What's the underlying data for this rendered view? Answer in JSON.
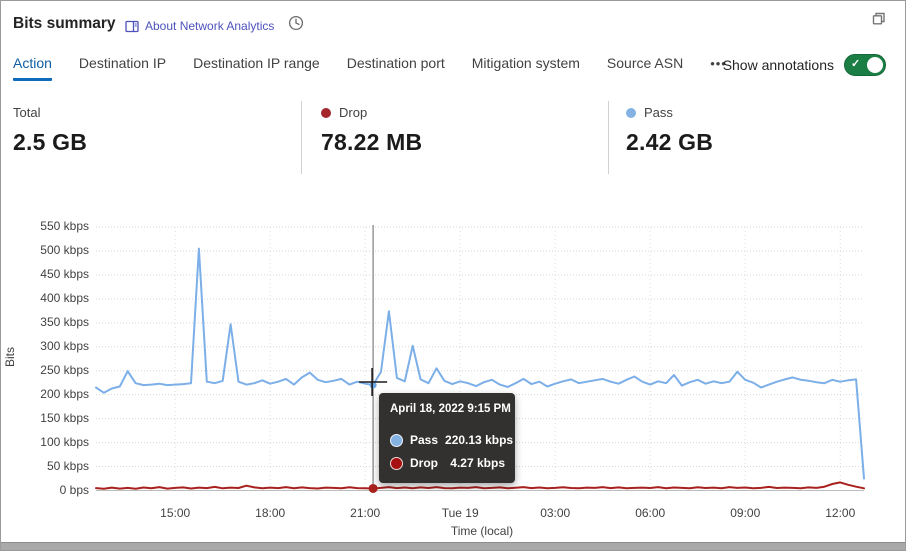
{
  "header": {
    "title": "Bits summary",
    "about_link": "About Network Analytics",
    "icons": [
      "book-icon",
      "clock-icon",
      "restore-window-icon"
    ]
  },
  "tabs": {
    "items": [
      {
        "label": "Action",
        "selected": true
      },
      {
        "label": "Destination IP",
        "selected": false
      },
      {
        "label": "Destination IP range",
        "selected": false
      },
      {
        "label": "Destination port",
        "selected": false
      },
      {
        "label": "Mitigation system",
        "selected": false
      },
      {
        "label": "Source ASN",
        "selected": false
      }
    ],
    "overflow_label": "•••"
  },
  "annotations_toggle": {
    "label": "Show annotations",
    "state": "on"
  },
  "stats": [
    {
      "label": "Total",
      "value": "2.5 GB",
      "dot_color": null
    },
    {
      "label": "Drop",
      "value": "78.22 MB",
      "dot_color": "#a4262c"
    },
    {
      "label": "Pass",
      "value": "2.42 GB",
      "dot_color": "#84b3e3"
    }
  ],
  "tooltip": {
    "title": "April 18, 2022 9:15 PM",
    "rows": [
      {
        "label": "Pass",
        "value": "220.13 kbps",
        "color": "#84b3e3"
      },
      {
        "label": "Drop",
        "value": "4.27 kbps",
        "color": "#a50f0f"
      }
    ]
  },
  "colors": {
    "accent_blue": "#115ea3",
    "tab_underline": "#0f6cbd",
    "link_indigo": "#4d52bc",
    "pass_line": "#7cafe8",
    "drop_line": "#a8211e",
    "toggle_green": "#1b7e45",
    "tooltip_bg": "#323130",
    "grid": "#d9d9d9"
  },
  "chart_data": {
    "type": "line",
    "xlabel": "Time (local)",
    "ylabel": "Bits",
    "ylim": [
      0,
      550
    ],
    "unit": "kbps",
    "grid": true,
    "x_start": "April 18, 2022 12:30 PM",
    "x_end": "April 19, 2022 12:45 PM",
    "interval_minutes": 15,
    "y_tick_labels": [
      "0 bps",
      "50 kbps",
      "100 kbps",
      "150 kbps",
      "200 kbps",
      "250 kbps",
      "300 kbps",
      "350 kbps",
      "400 kbps",
      "450 kbps",
      "500 kbps",
      "550 kbps"
    ],
    "x_tick_labels": [
      "15:00",
      "18:00",
      "21:00",
      "Tue 19",
      "03:00",
      "06:00",
      "09:00",
      "12:00"
    ],
    "x_tick_indices": [
      10,
      22,
      34,
      46,
      58,
      70,
      82,
      94
    ],
    "hover": {
      "index": 35,
      "time": "April 18, 2022 9:15 PM",
      "pass_kbps": 220.13,
      "drop_kbps": 4.27
    },
    "series": [
      {
        "name": "Pass",
        "color": "#7cafe8",
        "values": [
          215,
          204,
          213,
          217,
          249,
          224,
          220,
          221,
          223,
          220,
          221,
          222,
          224,
          505,
          227,
          224,
          229,
          347,
          227,
          221,
          224,
          230,
          223,
          227,
          233,
          221,
          236,
          246,
          231,
          226,
          229,
          233,
          221,
          227,
          223,
          220.13,
          248,
          374,
          235,
          228,
          302,
          232,
          224,
          255,
          229,
          222,
          228,
          224,
          218,
          226,
          231,
          221,
          216,
          224,
          233,
          222,
          227,
          217,
          223,
          228,
          232,
          224,
          227,
          230,
          233,
          227,
          223,
          231,
          238,
          227,
          221,
          228,
          224,
          241,
          219,
          226,
          231,
          223,
          228,
          224,
          227,
          248,
          231,
          225,
          215,
          221,
          227,
          232,
          236,
          231,
          229,
          226,
          224,
          231,
          227,
          230,
          232,
          25
        ]
      },
      {
        "name": "Drop",
        "color": "#a8211e",
        "values": [
          5,
          3.5,
          6,
          4,
          5.5,
          3.8,
          6.2,
          4.5,
          7,
          4,
          5.5,
          6.5,
          4.2,
          6,
          5,
          7.5,
          4.5,
          6,
          5.2,
          10,
          6.5,
          4.8,
          6,
          5,
          7,
          4.5,
          6.5,
          5,
          4.2,
          6,
          5.5,
          4.8,
          6.8,
          5,
          4.5,
          4.27,
          5.5,
          7,
          5,
          6.2,
          4.8,
          6.5,
          5.2,
          7.2,
          5,
          4.5,
          6,
          5.5,
          7,
          4.8,
          5.5,
          6.5,
          4.5,
          5.8,
          7,
          5,
          6.2,
          4.8,
          5.5,
          6.8,
          5.2,
          4.5,
          6,
          5.5,
          7.2,
          5,
          6.5,
          4.8,
          5.5,
          6,
          5.2,
          7,
          4.8,
          6.2,
          5.5,
          4.5,
          6.8,
          5.2,
          6,
          4.8,
          7,
          5.5,
          6.2,
          4.8,
          5.5,
          7.5,
          5.2,
          6,
          5.5,
          4.8,
          6.5,
          5.5,
          8,
          13.5,
          17,
          12,
          8,
          4.5
        ]
      }
    ]
  }
}
